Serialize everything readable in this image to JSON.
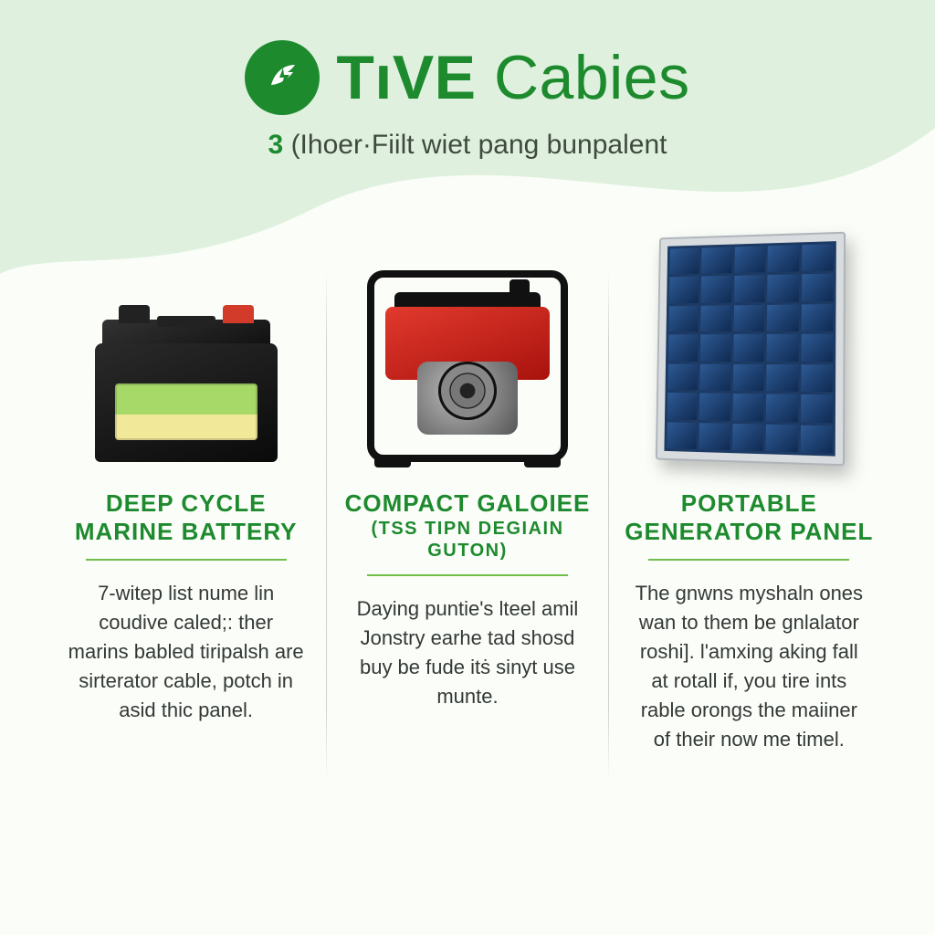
{
  "brand": {
    "title_bold": "TıVE",
    "title_light": "Cabies",
    "accent_color": "#1e8a2e",
    "logo_bg": "#1e8a2e",
    "logo_fg": "#ffffff"
  },
  "subtitle": {
    "number": "3",
    "text": "(Ihoer·Fiilt wiet pang bunpalent"
  },
  "background": {
    "page_bg": "#fbfdf9",
    "wave_color": "#dff1de"
  },
  "divider_color": "#b9beb9",
  "columns": [
    {
      "id": "battery",
      "title_line1": "DEEP CYCLE",
      "title_line2": "MARINE BATTERY",
      "subtitle": "",
      "underline_color": "#6fbf4a",
      "body": "7-witep list nume lin coudive caled;: ther marins babled tiripalsh are sirterator cable, potch in asid thic panel.",
      "product": {
        "type": "battery",
        "body_color": "#111111",
        "terminal_pos_color": "#d23a2a",
        "label_top_color": "#a7d969",
        "label_bottom_color": "#f2e89a"
      }
    },
    {
      "id": "generator",
      "title_line1": "COMPACT GALOIEE",
      "title_line2": "",
      "subtitle": "(TSS TIPN DEGIAIN GUTON)",
      "underline_color": "#6fbf4a",
      "body": "Daying puntie's lteel amil Jonstry earhe tad shosd buy be fude itṡ sinyt use munte.",
      "product": {
        "type": "generator",
        "frame_color": "#111111",
        "body_color": "#e23a2e",
        "engine_color": "#888888"
      }
    },
    {
      "id": "solar",
      "title_line1": "PORTABLE",
      "title_line2": "GENERATOR PANEL",
      "subtitle": "",
      "underline_color": "#6fbf4a",
      "body": "The gnwns myshaln ones wan to them be gnlalator roshi]. l'amxing aking fall at rotall if, you tire ints rable orongs the maiiner of their now me timel.",
      "product": {
        "type": "solar",
        "frame_color": "#d9dcdf",
        "cell_color": "#1c3a63",
        "grid_cols": 5,
        "grid_rows": 7
      }
    }
  ]
}
